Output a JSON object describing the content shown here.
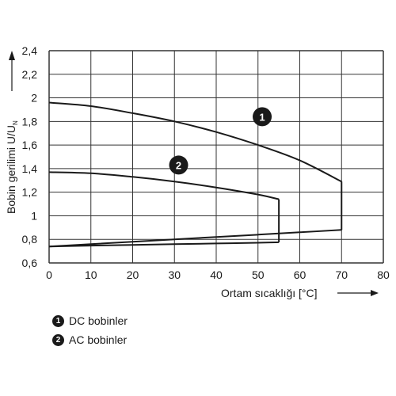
{
  "chart_data": {
    "type": "line",
    "xlabel": "Ortam sıcaklığı [°C]",
    "ylabel": "Bobin gerilimi U/U",
    "ylabel_sub": "N",
    "xlim": [
      0,
      80
    ],
    "ylim": [
      0.6,
      2.4
    ],
    "xticks": [
      0,
      10,
      20,
      30,
      40,
      50,
      60,
      70,
      80
    ],
    "yticks": [
      "0,6",
      "0,8",
      "1",
      "1,2",
      "1,4",
      "1,6",
      "1,8",
      "2",
      "2,2",
      "2,4"
    ],
    "ytick_values": [
      0.6,
      0.8,
      1.0,
      1.2,
      1.4,
      1.6,
      1.8,
      2.0,
      2.2,
      2.4
    ],
    "grid": true,
    "series": [
      {
        "name": "DC bobinler",
        "badge": "1",
        "upper": [
          [
            0,
            1.96
          ],
          [
            10,
            1.93
          ],
          [
            20,
            1.87
          ],
          [
            30,
            1.8
          ],
          [
            40,
            1.71
          ],
          [
            50,
            1.6
          ],
          [
            60,
            1.47
          ],
          [
            70,
            1.29
          ]
        ],
        "lower": [
          [
            0,
            0.74
          ],
          [
            10,
            0.76
          ],
          [
            20,
            0.78
          ],
          [
            30,
            0.8
          ],
          [
            40,
            0.82
          ],
          [
            50,
            0.84
          ],
          [
            60,
            0.86
          ],
          [
            70,
            0.88
          ]
        ]
      },
      {
        "name": "AC bobinler",
        "badge": "2",
        "upper": [
          [
            0,
            1.37
          ],
          [
            10,
            1.36
          ],
          [
            20,
            1.33
          ],
          [
            30,
            1.29
          ],
          [
            40,
            1.24
          ],
          [
            50,
            1.18
          ],
          [
            55,
            1.14
          ]
        ],
        "lower": [
          [
            0,
            0.74
          ],
          [
            10,
            0.747
          ],
          [
            20,
            0.753
          ],
          [
            30,
            0.759
          ],
          [
            40,
            0.765
          ],
          [
            50,
            0.771
          ],
          [
            55,
            0.775
          ]
        ]
      }
    ],
    "line_color": "#1a1a1a"
  }
}
